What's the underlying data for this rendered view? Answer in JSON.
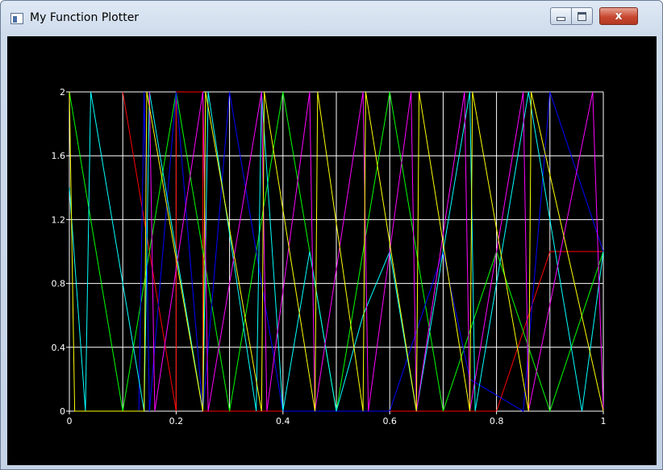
{
  "window": {
    "title": "My Function Plotter",
    "icons": {
      "app": "app-window-icon",
      "minimize": "minimize-icon",
      "maximize": "maximize-icon",
      "close": "close-icon"
    },
    "close_glyph": "x",
    "colors": {
      "client_background": "#000000",
      "close_button": "#c8472f"
    }
  },
  "chart_data": {
    "type": "line",
    "title": "",
    "xlabel": "",
    "ylabel": "",
    "xlim": [
      0,
      1
    ],
    "ylim": [
      0,
      2
    ],
    "grid": true,
    "legend": "none",
    "background": "#000000",
    "grid_color": "#ffffff",
    "x_ticks": [
      "0",
      "0.2",
      "0.4",
      "0.6",
      "0.8",
      "1"
    ],
    "y_ticks": [
      "0",
      "0.4",
      "0.8",
      "1.2",
      "1.6",
      "2"
    ],
    "series": [
      {
        "color": "#ff0000",
        "x": [
          0.1,
          0.2,
          0.2,
          0.25,
          0.25,
          0.8,
          0.9,
          1.0
        ],
        "y": [
          2,
          0,
          2,
          2,
          0,
          0,
          1,
          1
        ]
      },
      {
        "color": "#00ff00",
        "x": [
          0,
          0.1,
          0.2,
          0.3,
          0.4,
          0.5,
          0.6,
          0.7,
          0.8,
          0.9,
          1.0
        ],
        "y": [
          2,
          0,
          2,
          0,
          2,
          0,
          2,
          0,
          1,
          0,
          1
        ]
      },
      {
        "color": "#0000ff",
        "x": [
          0.13,
          0.14,
          0.15,
          0.2,
          0.25,
          0.3,
          0.35,
          0.4,
          0.5,
          0.6,
          0.65,
          0.7,
          0.75,
          0.85,
          0.9,
          1.0
        ],
        "y": [
          0,
          2,
          0,
          2,
          0,
          2,
          1,
          0,
          0,
          0,
          0.5,
          1,
          0.2,
          0,
          2,
          1
        ]
      },
      {
        "color": "#00ffff",
        "x": [
          0,
          0.03,
          0.04,
          0.14,
          0.15,
          0.25,
          0.26,
          0.35,
          0.36,
          0.4,
          0.45,
          0.5,
          0.55,
          0.6,
          0.65,
          0.75,
          0.76,
          0.86,
          0.96,
          1.0
        ],
        "y": [
          1.4,
          0,
          2,
          0,
          2,
          0,
          2,
          0,
          2,
          0,
          1,
          0,
          0.6,
          1,
          0,
          2,
          0,
          2,
          0,
          1
        ]
      },
      {
        "color": "#ff00ff",
        "x": [
          0.15,
          0.16,
          0.25,
          0.26,
          0.36,
          0.37,
          0.45,
          0.46,
          0.55,
          0.56,
          0.64,
          0.65,
          0.74,
          0.75,
          0.85,
          0.86,
          0.98,
          1.0
        ],
        "y": [
          2,
          0,
          2,
          0,
          2,
          0,
          2,
          0,
          2,
          0,
          2,
          0,
          2,
          0,
          2,
          0,
          2,
          0
        ]
      },
      {
        "color": "#ffff00",
        "x": [
          0,
          0.01,
          0.14,
          0.145,
          0.25,
          0.255,
          0.36,
          0.365,
          0.46,
          0.465,
          0.55,
          0.555,
          0.65,
          0.655,
          0.75,
          0.755,
          0.86,
          0.865,
          1.0
        ],
        "y": [
          2,
          0,
          0,
          2,
          0,
          2,
          0,
          2,
          0,
          2,
          0,
          2,
          0,
          2,
          0,
          2,
          0,
          2,
          0
        ]
      }
    ]
  }
}
